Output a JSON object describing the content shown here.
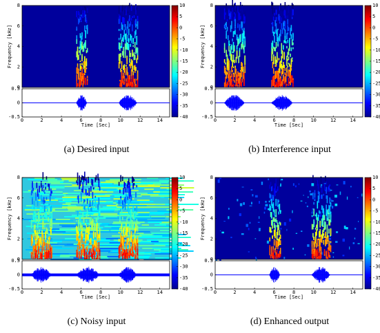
{
  "panels": [
    {
      "caption": "(a)  Desired input",
      "ylabel": "Frequency [kHz]",
      "xlabel": "Time [Sec]",
      "xlim": [
        0,
        15
      ],
      "xticks": [
        0,
        2,
        4,
        6,
        8,
        10,
        12,
        14
      ],
      "spec_ylim": [
        0,
        8
      ],
      "spec_yticks": [
        0,
        2,
        4,
        6,
        8
      ],
      "wave_ylim": [
        -0.5,
        0.5
      ],
      "wave_yticks": [
        -0.5,
        0,
        0.5
      ],
      "colorbar_lim": [
        -40,
        10
      ],
      "colorbar_ticks": [
        10,
        5,
        0,
        -5,
        -10,
        -15,
        -20,
        -25,
        -30,
        -35,
        -40
      ]
    },
    {
      "caption": "(b)  Interference input",
      "ylabel": "Frequency [kHz]",
      "xlabel": "Time [Sec]",
      "xlim": [
        0,
        15
      ],
      "xticks": [
        0,
        2,
        4,
        6,
        8,
        10,
        12,
        14
      ],
      "spec_ylim": [
        0,
        8
      ],
      "spec_yticks": [
        0,
        2,
        4,
        6,
        8
      ],
      "wave_ylim": [
        -0.5,
        0.5
      ],
      "wave_yticks": [
        -0.5,
        0,
        0.5
      ],
      "colorbar_lim": [
        -40,
        10
      ],
      "colorbar_ticks": [
        10,
        5,
        0,
        -5,
        -10,
        -15,
        -20,
        -25,
        -30,
        -35,
        -40
      ]
    },
    {
      "caption": "(c)  Noisy input",
      "ylabel": "Frequency [kHz]",
      "xlabel": "Time [Sec]",
      "xlim": [
        0,
        15
      ],
      "xticks": [
        0,
        2,
        4,
        6,
        8,
        10,
        12,
        14
      ],
      "spec_ylim": [
        0,
        8
      ],
      "spec_yticks": [
        0,
        2,
        4,
        6,
        8
      ],
      "wave_ylim": [
        -0.5,
        0.5
      ],
      "wave_yticks": [
        -0.5,
        0,
        0.5
      ],
      "colorbar_lim": [
        -40,
        10
      ],
      "colorbar_ticks": [
        10,
        5,
        0,
        -5,
        -10,
        -15,
        -20,
        -25,
        -30,
        -35,
        -40
      ]
    },
    {
      "caption": "(d)  Enhanced output",
      "ylabel": "Frequency [kHz]",
      "xlabel": "Time [Sec]",
      "xlim": [
        0,
        15
      ],
      "xticks": [
        0,
        2,
        4,
        6,
        8,
        10,
        12,
        14
      ],
      "spec_ylim": [
        0,
        8
      ],
      "spec_yticks": [
        0,
        2,
        4,
        6,
        8
      ],
      "wave_ylim": [
        -0.5,
        0.5
      ],
      "wave_yticks": [
        -0.5,
        0,
        0.5
      ],
      "colorbar_lim": [
        -40,
        10
      ],
      "colorbar_ticks": [
        10,
        5,
        0,
        -5,
        -10,
        -15,
        -20,
        -25,
        -30,
        -35,
        -40
      ]
    }
  ]
}
